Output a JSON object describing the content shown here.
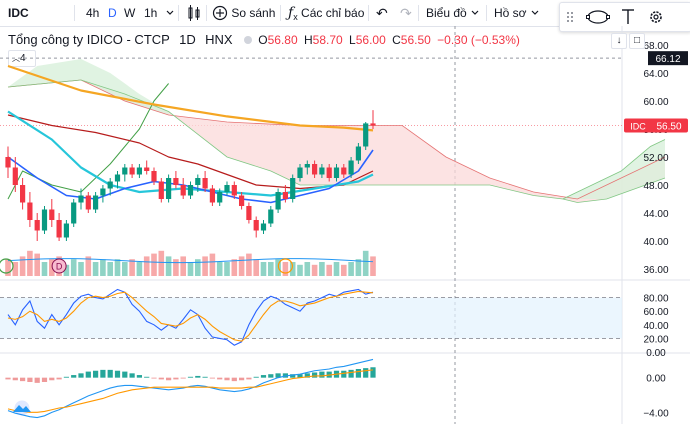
{
  "toolbar": {
    "symbol": "IDC",
    "intervals": [
      "4h",
      "D",
      "W",
      "1h"
    ],
    "active_interval": "D",
    "compare_label": "So sánh",
    "indicators_label": "Các chỉ báo",
    "chart_type_label": "Biểu đồ",
    "profile_label": "Hồ sơ"
  },
  "legend": {
    "title": "Tổng công ty IDICO - CTCP",
    "interval": "1D",
    "exchange": "HNX",
    "o_label": "O",
    "o_value": "56.80",
    "h_label": "H",
    "h_value": "58.70",
    "l_label": "L",
    "l_value": "56.00",
    "c_label": "C",
    "c_value": "56.50",
    "change": "−0.30 (−0.53%)",
    "indicator_count": "4"
  },
  "colors": {
    "up": "#089981",
    "down": "#f23645",
    "ma_orange": "#f5a623",
    "line_cyan": "#26c6da",
    "line_blue": "#2962ff",
    "line_red": "#b71c1c",
    "line_green": "#43a047",
    "cloud_red": "#fbd9d9",
    "cloud_green": "#d8f0db",
    "accent": "#2962ff"
  },
  "chart_data": [
    {
      "type": "candlestick",
      "name": "price",
      "y_ticks": [
        36,
        40,
        44,
        48,
        52,
        56,
        60,
        64,
        68
      ],
      "ylim": [
        35,
        69
      ],
      "last_price_label": "IDC",
      "last_price": "56.50",
      "crosshair_price": "66.12",
      "candles": [
        [
          52.0,
          53.5,
          49.0,
          50.5
        ],
        [
          50.5,
          52.0,
          47.0,
          48.0
        ],
        [
          48.0,
          49.0,
          44.5,
          45.5
        ],
        [
          45.5,
          47.0,
          42.0,
          43.0
        ],
        [
          43.0,
          44.0,
          40.0,
          41.5
        ],
        [
          41.5,
          45.0,
          41.0,
          44.5
        ],
        [
          44.5,
          46.0,
          42.0,
          43.0
        ],
        [
          43.0,
          44.0,
          40.0,
          40.5
        ],
        [
          40.5,
          43.0,
          40.0,
          42.5
        ],
        [
          42.5,
          46.0,
          42.0,
          45.5
        ],
        [
          45.5,
          47.5,
          44.5,
          46.5
        ],
        [
          46.5,
          47.0,
          44.0,
          44.5
        ],
        [
          44.5,
          47.0,
          44.0,
          46.5
        ],
        [
          46.5,
          48.0,
          45.5,
          47.5
        ],
        [
          47.5,
          49.0,
          46.5,
          48.5
        ],
        [
          48.5,
          50.0,
          47.5,
          49.5
        ],
        [
          49.5,
          51.0,
          48.5,
          50.5
        ],
        [
          50.5,
          51.0,
          49.0,
          49.5
        ],
        [
          49.5,
          51.0,
          49.0,
          50.5
        ],
        [
          50.5,
          51.5,
          49.5,
          50.0
        ],
        [
          50.0,
          50.5,
          48.0,
          48.5
        ],
        [
          48.5,
          49.0,
          45.5,
          46.0
        ],
        [
          46.0,
          49.5,
          45.5,
          49.0
        ],
        [
          49.0,
          50.0,
          47.5,
          48.0
        ],
        [
          48.0,
          49.0,
          46.0,
          46.5
        ],
        [
          46.5,
          48.5,
          46.0,
          48.0
        ],
        [
          48.0,
          49.5,
          47.0,
          49.0
        ],
        [
          49.0,
          50.0,
          47.0,
          47.5
        ],
        [
          47.5,
          48.0,
          45.0,
          45.5
        ],
        [
          45.5,
          47.5,
          45.0,
          47.0
        ],
        [
          47.0,
          48.5,
          46.5,
          48.0
        ],
        [
          48.0,
          48.5,
          46.0,
          46.5
        ],
        [
          46.5,
          47.0,
          44.5,
          45.0
        ],
        [
          45.0,
          45.5,
          42.5,
          43.0
        ],
        [
          43.0,
          43.5,
          40.5,
          41.5
        ],
        [
          41.5,
          43.0,
          41.0,
          42.5
        ],
        [
          42.5,
          45.0,
          42.0,
          44.5
        ],
        [
          44.5,
          47.5,
          44.0,
          47.0
        ],
        [
          47.0,
          48.0,
          45.5,
          46.0
        ],
        [
          46.0,
          49.5,
          45.5,
          49.0
        ],
        [
          49.0,
          51.0,
          48.5,
          50.5
        ],
        [
          50.5,
          51.5,
          49.5,
          51.0
        ],
        [
          51.0,
          51.5,
          49.0,
          49.5
        ],
        [
          49.5,
          51.0,
          49.0,
          50.5
        ],
        [
          50.5,
          51.0,
          48.5,
          49.0
        ],
        [
          49.0,
          51.0,
          48.5,
          50.5
        ],
        [
          50.5,
          51.0,
          49.0,
          49.5
        ],
        [
          49.5,
          52.0,
          49.0,
          51.5
        ],
        [
          51.5,
          54.0,
          51.0,
          53.5
        ],
        [
          53.5,
          57.0,
          53.0,
          56.8
        ],
        [
          56.8,
          58.7,
          56.0,
          56.5
        ]
      ],
      "volume_ratio": [
        0.6,
        0.5,
        0.7,
        0.9,
        0.8,
        0.5,
        0.6,
        0.7,
        0.4,
        0.6,
        0.5,
        0.7,
        0.5,
        0.6,
        0.5,
        0.6,
        0.5,
        0.6,
        0.5,
        0.7,
        0.8,
        0.9,
        0.7,
        0.6,
        0.7,
        0.5,
        0.6,
        0.7,
        0.8,
        0.5,
        0.5,
        0.6,
        0.7,
        0.8,
        0.6,
        0.5,
        0.5,
        0.6,
        0.5,
        0.5,
        0.4,
        0.5,
        0.4,
        0.5,
        0.4,
        0.5,
        0.4,
        0.5,
        0.6,
        0.9,
        0.7
      ],
      "ma_orange": [
        [
          0,
          65.0
        ],
        [
          10,
          61.5
        ],
        [
          20,
          59.5
        ],
        [
          30,
          57.8
        ],
        [
          40,
          56.5
        ],
        [
          46,
          56.2
        ],
        [
          50,
          55.8
        ]
      ],
      "line_cyan": [
        [
          0,
          58.5
        ],
        [
          6,
          54.5
        ],
        [
          10,
          50.5
        ],
        [
          14,
          48.0
        ],
        [
          18,
          47.0
        ],
        [
          24,
          47.5
        ],
        [
          30,
          47.0
        ],
        [
          36,
          46.5
        ],
        [
          42,
          47.5
        ],
        [
          48,
          48.5
        ],
        [
          50,
          49.5
        ]
      ],
      "line_blue": [
        [
          0,
          52.0
        ],
        [
          4,
          49.0
        ],
        [
          8,
          46.5
        ],
        [
          12,
          46.0
        ],
        [
          16,
          47.5
        ],
        [
          20,
          48.5
        ],
        [
          24,
          48.0
        ],
        [
          28,
          47.0
        ],
        [
          32,
          46.0
        ],
        [
          36,
          45.5
        ],
        [
          40,
          46.5
        ],
        [
          44,
          47.5
        ],
        [
          48,
          50.0
        ],
        [
          50,
          53.0
        ]
      ],
      "line_red": [
        [
          0,
          58.0
        ],
        [
          6,
          56.5
        ],
        [
          12,
          55.5
        ],
        [
          18,
          54.0
        ],
        [
          22,
          52.0
        ],
        [
          26,
          51.0
        ],
        [
          30,
          49.5
        ],
        [
          34,
          48.0
        ],
        [
          40,
          47.5
        ],
        [
          46,
          48.0
        ],
        [
          50,
          50.0
        ]
      ],
      "line_green": [
        [
          0,
          46.0
        ],
        [
          2,
          50.0
        ],
        [
          6,
          48.0
        ],
        [
          10,
          47.0
        ],
        [
          14,
          51.0
        ],
        [
          18,
          56.0
        ],
        [
          20,
          60.0
        ],
        [
          22,
          62.5
        ]
      ],
      "cloud_upper": [
        [
          0,
          62.0
        ],
        [
          10,
          63.0
        ],
        [
          16,
          60.0
        ],
        [
          22,
          58.0
        ],
        [
          30,
          57.0
        ],
        [
          40,
          56.5
        ],
        [
          48,
          56.5
        ],
        [
          54,
          56.5
        ],
        [
          60,
          52.0
        ],
        [
          66,
          49.0
        ],
        [
          72,
          47.0
        ],
        [
          78,
          46.0
        ],
        [
          84,
          49.0
        ],
        [
          90,
          52.0
        ]
      ],
      "cloud_lower": [
        [
          0,
          62.0
        ],
        [
          10,
          63.0
        ],
        [
          16,
          61.0
        ],
        [
          22,
          58.5
        ],
        [
          30,
          52.0
        ],
        [
          36,
          50.0
        ],
        [
          40,
          48.0
        ],
        [
          46,
          48.0
        ],
        [
          52,
          48.0
        ],
        [
          58,
          48.0
        ],
        [
          66,
          48.0
        ],
        [
          72,
          46.5
        ],
        [
          76,
          46.0
        ],
        [
          78,
          45.5
        ],
        [
          82,
          46.0
        ],
        [
          86,
          47.5
        ],
        [
          90,
          49.0
        ]
      ],
      "cloud_green_upper": [
        [
          30,
          57.0
        ],
        [
          30,
          57.0
        ]
      ],
      "cloud_extra_green": [
        [
          84,
          49.0
        ],
        [
          90,
          52.0
        ]
      ]
    },
    {
      "type": "line",
      "name": "oscillator",
      "y_ticks": [
        0.0,
        20.0,
        40.0,
        60.0,
        80.0
      ],
      "y_tick_labels": [
        "0.00",
        "20.00",
        "40.00",
        "60.00",
        "80.00"
      ],
      "ylim": [
        0,
        100
      ],
      "band": [
        20,
        80
      ],
      "series": [
        {
          "color": "#2962ff",
          "values": [
            55,
            40,
            62,
            75,
            45,
            35,
            55,
            40,
            55,
            72,
            82,
            85,
            80,
            78,
            85,
            92,
            88,
            70,
            60,
            45,
            40,
            32,
            40,
            35,
            48,
            62,
            55,
            35,
            22,
            20,
            18,
            10,
            15,
            40,
            60,
            75,
            82,
            78,
            70,
            65,
            60,
            72,
            75,
            80,
            85,
            82,
            88,
            90,
            92,
            85,
            88
          ]
        },
        {
          "color": "#ff9800",
          "values": [
            50,
            48,
            52,
            60,
            55,
            45,
            48,
            45,
            50,
            60,
            72,
            80,
            82,
            80,
            82,
            86,
            88,
            80,
            70,
            60,
            52,
            42,
            40,
            38,
            42,
            50,
            55,
            48,
            38,
            30,
            24,
            18,
            16,
            25,
            40,
            55,
            68,
            75,
            75,
            72,
            68,
            70,
            72,
            76,
            80,
            82,
            85,
            87,
            89,
            88,
            87
          ]
        }
      ]
    },
    {
      "type": "bar",
      "name": "macd",
      "y_ticks": [
        0.0,
        -4.0
      ],
      "y_tick_labels": [
        "0.00",
        "−4.00"
      ],
      "ylim": [
        -5.0,
        2.5
      ],
      "histogram": [
        -0.2,
        -0.3,
        -0.4,
        -0.5,
        -0.6,
        -0.5,
        -0.3,
        -0.2,
        0.1,
        0.3,
        0.5,
        0.7,
        0.8,
        0.9,
        0.9,
        0.8,
        0.7,
        0.5,
        0.3,
        0.1,
        -0.1,
        -0.2,
        -0.3,
        -0.2,
        -0.1,
        0.1,
        0.2,
        0.1,
        -0.1,
        -0.2,
        -0.3,
        -0.4,
        -0.3,
        -0.2,
        0.1,
        0.3,
        0.4,
        0.5,
        0.5,
        0.4,
        0.4,
        0.5,
        0.6,
        0.7,
        0.7,
        0.8,
        0.8,
        0.9,
        1.0,
        1.1,
        1.2
      ],
      "series": [
        {
          "color": "#2196f3",
          "values": [
            -3.8,
            -4.1,
            -4.3,
            -4.5,
            -4.6,
            -4.4,
            -4.0,
            -3.7,
            -3.3,
            -2.9,
            -2.5,
            -2.1,
            -1.8,
            -1.5,
            -1.2,
            -1.0,
            -0.9,
            -0.9,
            -1.0,
            -1.1,
            -1.2,
            -1.3,
            -1.4,
            -1.3,
            -1.2,
            -1.0,
            -0.9,
            -1.0,
            -1.2,
            -1.4,
            -1.5,
            -1.6,
            -1.5,
            -1.3,
            -1.0,
            -0.6,
            -0.3,
            0.0,
            0.2,
            0.3,
            0.4,
            0.6,
            0.8,
            0.9,
            1.0,
            1.2,
            1.3,
            1.5,
            1.7,
            1.9,
            2.1
          ]
        },
        {
          "color": "#ff9800",
          "values": [
            -3.6,
            -3.8,
            -3.9,
            -4.0,
            -4.0,
            -3.9,
            -3.7,
            -3.5,
            -3.4,
            -3.2,
            -3.0,
            -2.8,
            -2.6,
            -2.4,
            -2.1,
            -1.8,
            -1.6,
            -1.4,
            -1.3,
            -1.2,
            -1.1,
            -1.1,
            -1.1,
            -1.1,
            -1.1,
            -1.1,
            -1.1,
            -1.1,
            -1.1,
            -1.2,
            -1.2,
            -1.2,
            -1.2,
            -1.1,
            -1.1,
            -0.9,
            -0.7,
            -0.5,
            -0.3,
            -0.1,
            0.0,
            0.1,
            0.2,
            0.2,
            0.3,
            0.4,
            0.5,
            0.6,
            0.7,
            0.8,
            0.9
          ]
        }
      ]
    }
  ]
}
